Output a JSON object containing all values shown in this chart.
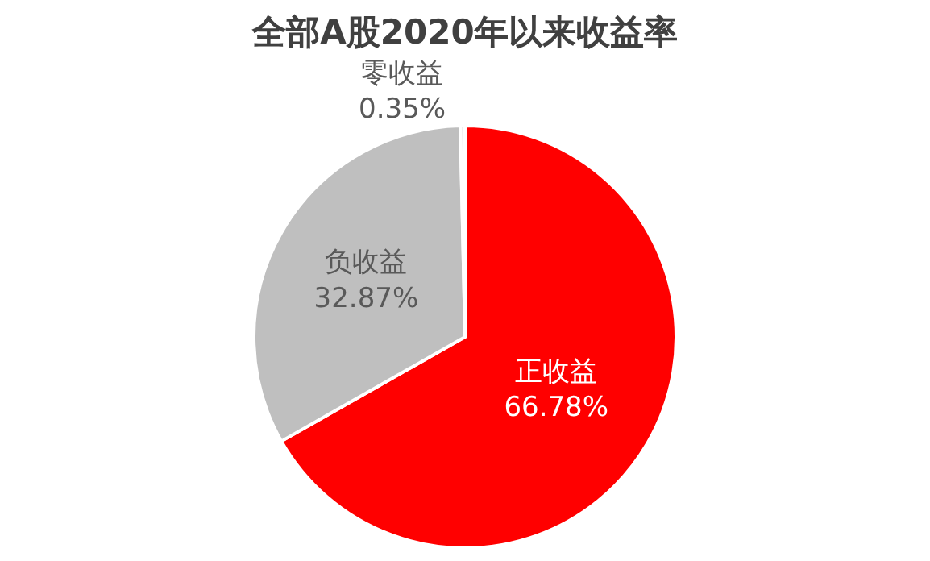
{
  "chart_data": {
    "type": "pie",
    "title": "全部A股2020年以来收益率",
    "categories": [
      "正收益",
      "负收益",
      "零收益"
    ],
    "values": [
      66.78,
      32.87,
      0.35
    ],
    "value_labels": [
      "66.78%",
      "32.87%",
      "0.35%"
    ],
    "colors": [
      "#ff0000",
      "#bfbfbf",
      "#e7e6e6"
    ]
  }
}
